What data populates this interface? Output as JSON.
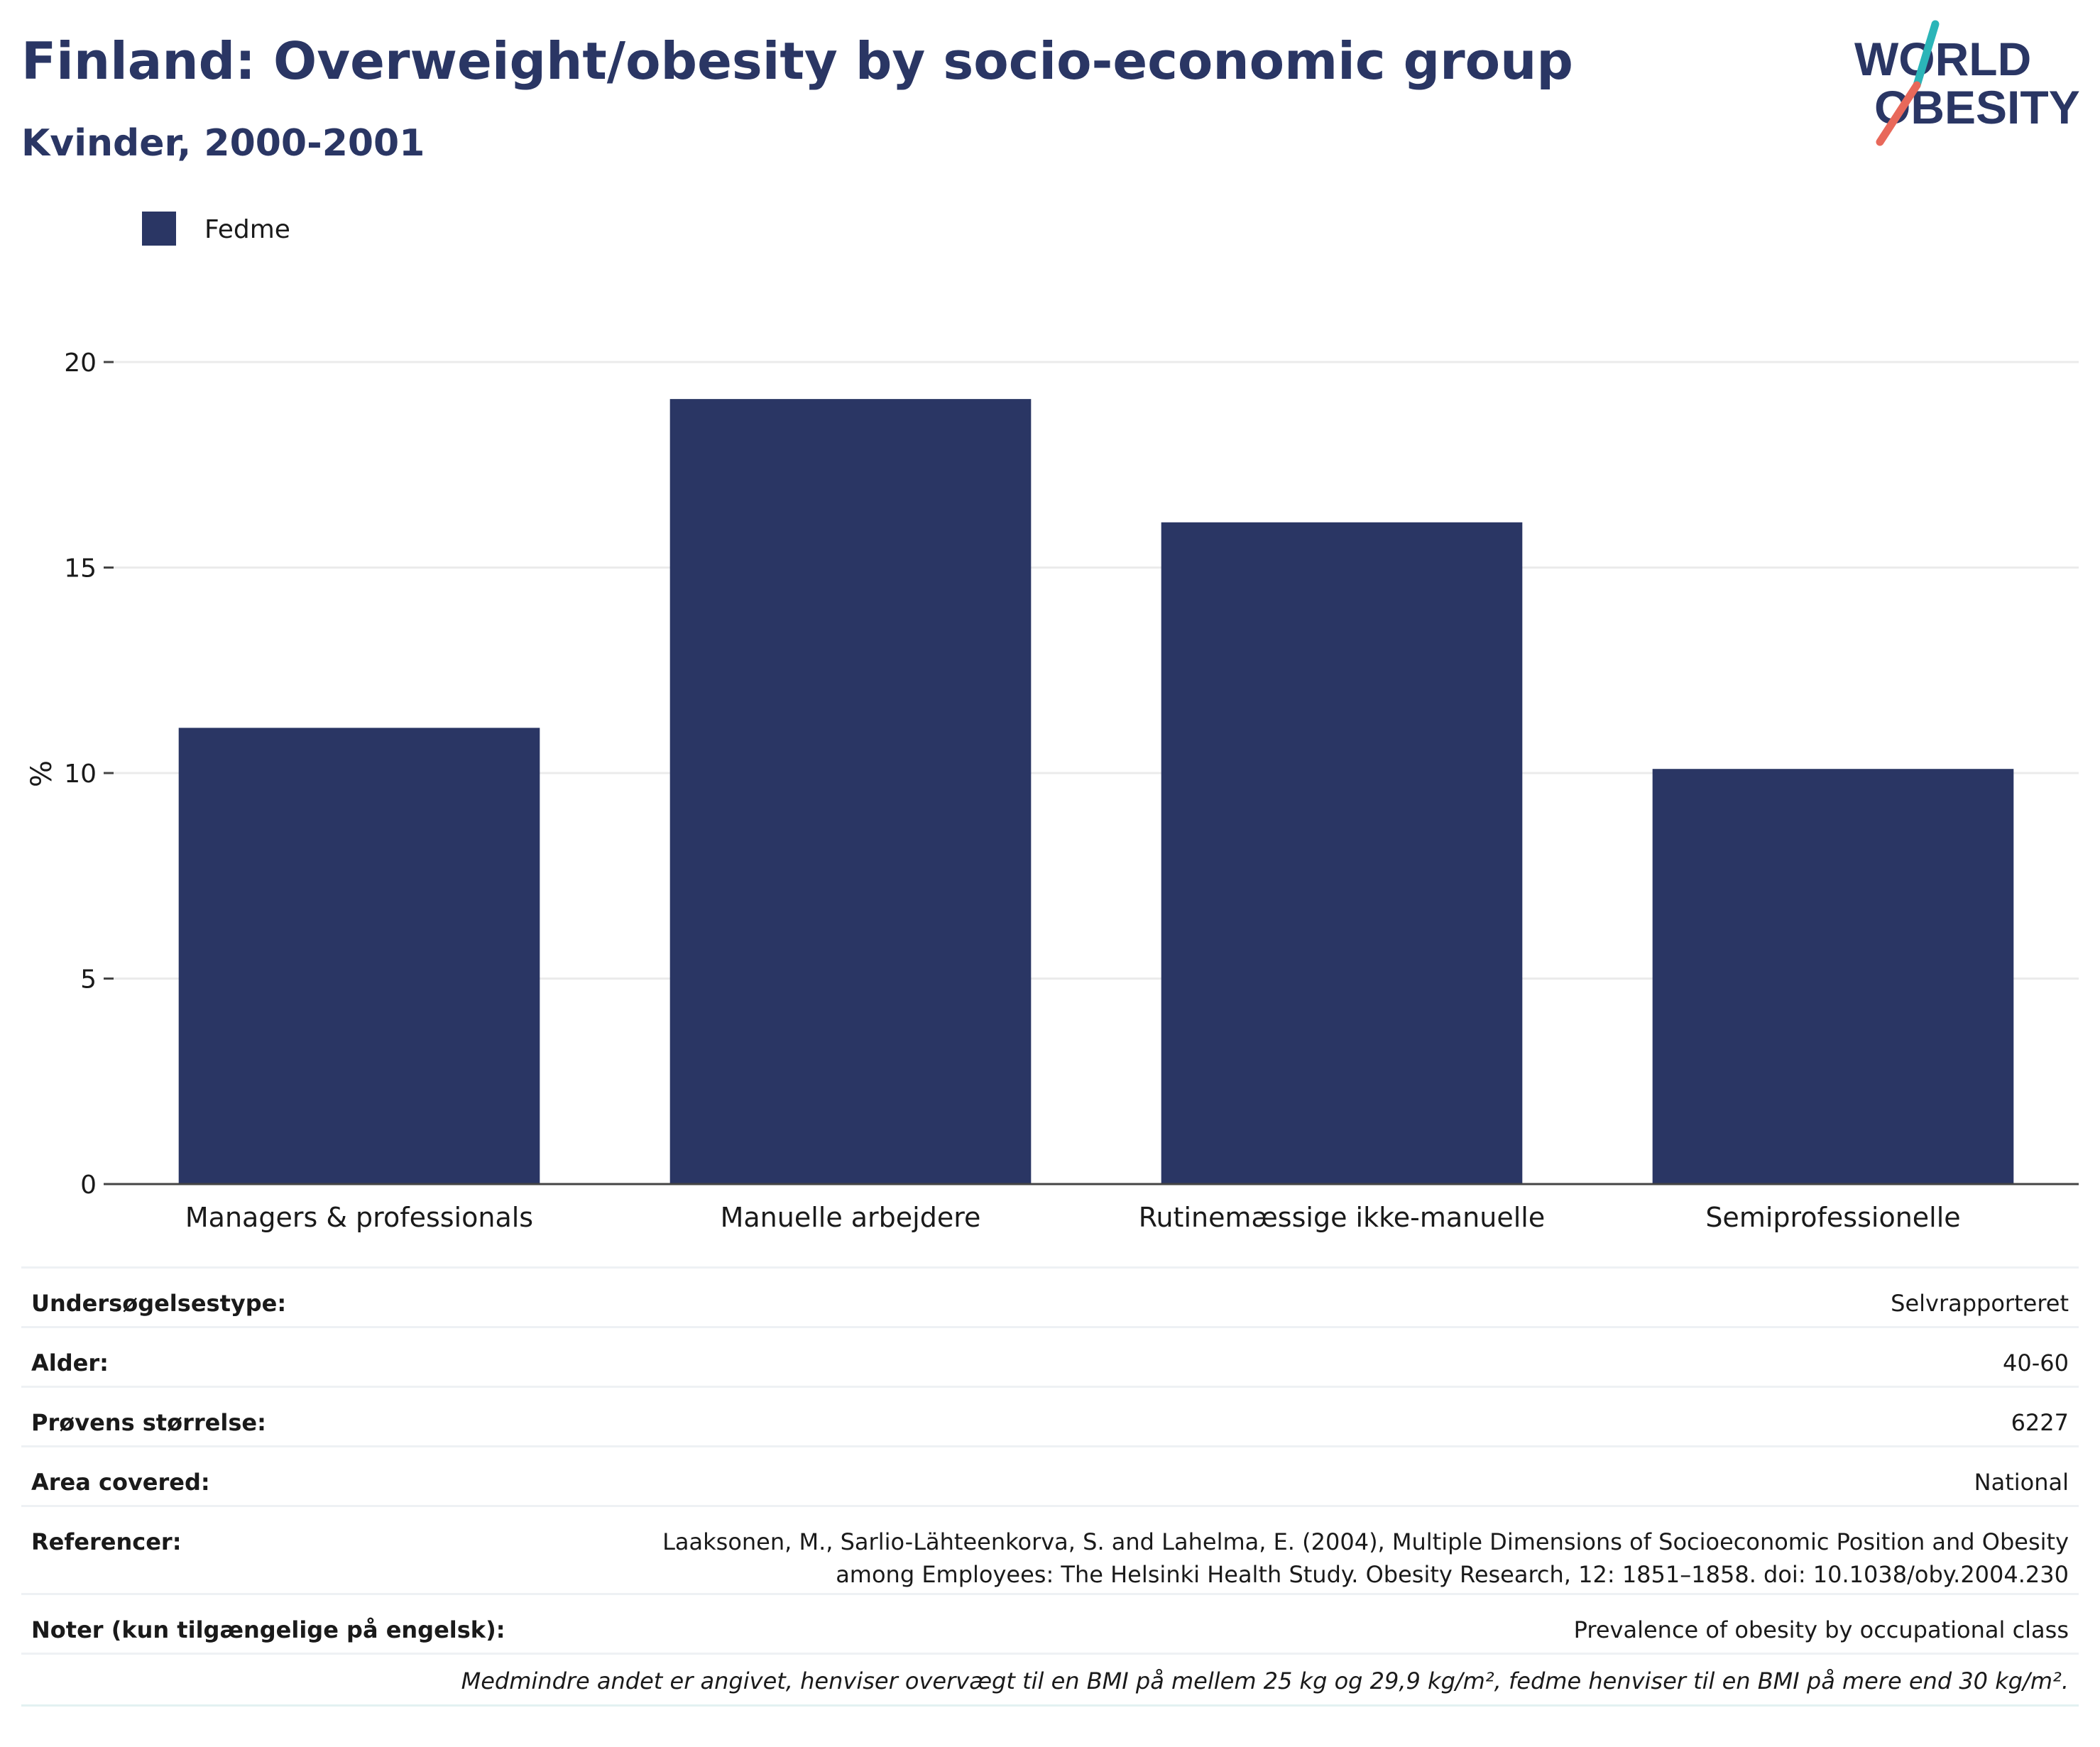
{
  "header": {
    "title": "Finland: Overweight/obesity by socio-economic group",
    "subtitle": "Kvinder, 2000-2001"
  },
  "logo": {
    "line1": "WORLD",
    "line2": "OBESITY",
    "colors": {
      "text": "#2a3664",
      "slash_top": "#2bb5b8",
      "slash_bottom": "#e8685a"
    }
  },
  "chart_data": {
    "type": "bar",
    "categories": [
      "Managers & professionals",
      "Manuelle arbejdere",
      "Rutinemæssige ikke-manuelle",
      "Semiprofessionelle"
    ],
    "series": [
      {
        "name": "Fedme",
        "values": [
          11.1,
          19.1,
          16.1,
          10.1
        ],
        "color": "#2a3664"
      }
    ],
    "ylabel": "%",
    "ylim": [
      0,
      20
    ],
    "yticks": [
      0,
      5,
      10,
      15,
      20
    ],
    "grid": true,
    "legend": "top-left"
  },
  "info": {
    "rows": [
      {
        "label": "Undersøgelsestype:",
        "value": "Selvrapporteret"
      },
      {
        "label": "Alder:",
        "value": "40-60"
      },
      {
        "label": "Prøvens størrelse:",
        "value": "6227"
      },
      {
        "label": "Area covered:",
        "value": "National"
      },
      {
        "label": "Referencer:",
        "value": "Laaksonen, M., Sarlio-Lähteenkorva, S. and Lahelma, E. (2004), Multiple Dimensions of Socioeconomic Position and Obesity among Employees: The Helsinki Health Study. Obesity Research, 12: 1851–1858. doi: 10.1038/oby.2004.230"
      },
      {
        "label": "Noter (kun tilgængelige på engelsk):",
        "value": "Prevalence of obesity by occupational class"
      }
    ],
    "footnote": "Medmindre andet er angivet, henviser overvægt til en BMI på mellem 25 kg og 29,9 kg/m², fedme henviser til en BMI på mere end 30 kg/m²."
  }
}
